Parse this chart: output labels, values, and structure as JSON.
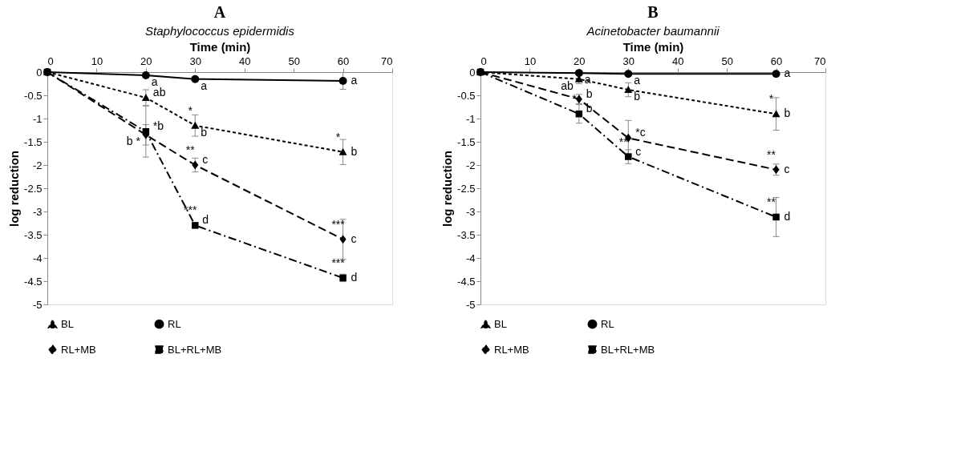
{
  "chart_data": [
    {
      "type": "line",
      "title": "A",
      "subtitle": "Staphylococcus epidermidis",
      "xlabel": "Time (min)",
      "ylabel": "log reduction",
      "x": [
        0,
        20,
        30,
        60
      ],
      "xlim": [
        0,
        70
      ],
      "xticks": [
        0,
        10,
        20,
        30,
        40,
        50,
        60,
        70
      ],
      "ylim": [
        -5,
        0
      ],
      "yticks": [
        -5,
        -4.5,
        -4,
        -3.5,
        -3,
        -2.5,
        -2,
        -1.5,
        -1,
        -0.5,
        0
      ],
      "legend": "bottom",
      "series": [
        {
          "name": "BL",
          "color": "#000000",
          "marker": "triangle",
          "line_style": "dotted",
          "values": [
            0,
            -0.55,
            -1.15,
            -1.72
          ],
          "errors": [
            null,
            0.17,
            0.23,
            0.27
          ]
        },
        {
          "name": "RL",
          "color": "#000000",
          "marker": "circle",
          "line_style": "solid",
          "values": [
            0,
            -0.07,
            -0.15,
            -0.19
          ],
          "errors": [
            null,
            null,
            null,
            0.18
          ]
        },
        {
          "name": "RL+MB",
          "color": "#000000",
          "marker": "diamond",
          "line_style": "dashed",
          "values": [
            0,
            -1.35,
            -2.0,
            -3.6
          ],
          "errors": [
            null,
            0.22,
            0.15,
            0.43
          ]
        },
        {
          "name": "BL+RL+MB",
          "color": "#000000",
          "marker": "square",
          "line_style": "dashdot",
          "values": [
            0,
            -1.28,
            -3.3,
            -4.43
          ],
          "errors": [
            null,
            0.55,
            null,
            0.08
          ]
        }
      ],
      "annotations": [
        {
          "text": "a",
          "x": 20,
          "y": -0.07
        },
        {
          "text": "ab",
          "x": 20,
          "y": -0.55
        },
        {
          "text": "*b",
          "x": 20,
          "y": -1.28
        },
        {
          "text": "b *",
          "x": 20,
          "y": -1.35
        },
        {
          "text": "a",
          "x": 30,
          "y": -0.15
        },
        {
          "text": "*",
          "x": 30,
          "y": -1.15
        },
        {
          "text": "b",
          "x": 30,
          "y": -1.15
        },
        {
          "text": "**",
          "x": 30,
          "y": -2.0
        },
        {
          "text": "c",
          "x": 30,
          "y": -2.0
        },
        {
          "text": "***",
          "x": 30,
          "y": -3.3
        },
        {
          "text": "d",
          "x": 30,
          "y": -3.3
        },
        {
          "text": "a",
          "x": 60,
          "y": -0.19
        },
        {
          "text": "*",
          "x": 60,
          "y": -1.72
        },
        {
          "text": "b",
          "x": 60,
          "y": -1.72
        },
        {
          "text": "***",
          "x": 60,
          "y": -3.6
        },
        {
          "text": "c",
          "x": 60,
          "y": -3.6
        },
        {
          "text": "***",
          "x": 60,
          "y": -4.43
        },
        {
          "text": "d",
          "x": 60,
          "y": -4.43
        }
      ]
    },
    {
      "type": "line",
      "title": "B",
      "subtitle": "Acinetobacter baumannii",
      "xlabel": "Time (min)",
      "ylabel": "log reduction",
      "x": [
        0,
        20,
        30,
        60
      ],
      "xlim": [
        0,
        70
      ],
      "xticks": [
        0,
        10,
        20,
        30,
        40,
        50,
        60,
        70
      ],
      "ylim": [
        -5,
        0
      ],
      "yticks": [
        -5,
        -4.5,
        -4,
        -3.5,
        -3,
        -2.5,
        -2,
        -1.5,
        -1,
        -0.5,
        0
      ],
      "legend": "bottom",
      "series": [
        {
          "name": "BL",
          "color": "#000000",
          "marker": "triangle",
          "line_style": "dotted",
          "values": [
            0,
            -0.15,
            -0.38,
            -0.9
          ],
          "errors": [
            null,
            0.1,
            0.15,
            0.35
          ]
        },
        {
          "name": "RL",
          "color": "#000000",
          "marker": "circle",
          "line_style": "solid",
          "values": [
            0,
            -0.02,
            -0.04,
            -0.04
          ],
          "errors": [
            null,
            null,
            null,
            null
          ]
        },
        {
          "name": "RL+MB",
          "color": "#000000",
          "marker": "diamond",
          "line_style": "dashed",
          "values": [
            0,
            -0.58,
            -1.42,
            -2.1
          ],
          "errors": [
            null,
            0.1,
            0.38,
            0.12
          ]
        },
        {
          "name": "BL+RL+MB",
          "color": "#000000",
          "marker": "square",
          "line_style": "dashdot",
          "values": [
            0,
            -0.9,
            -1.82,
            -3.12
          ],
          "errors": [
            null,
            0.2,
            0.15,
            0.42
          ]
        }
      ],
      "annotations": [
        {
          "text": "a",
          "x": 20,
          "y": -0.02
        },
        {
          "text": "ab",
          "x": 20,
          "y": -0.15
        },
        {
          "text": "b",
          "x": 20,
          "y": -0.58
        },
        {
          "text": "*",
          "x": 20,
          "y": -0.9
        },
        {
          "text": "b",
          "x": 20,
          "y": -0.9
        },
        {
          "text": "a",
          "x": 30,
          "y": -0.04
        },
        {
          "text": "b",
          "x": 30,
          "y": -0.38
        },
        {
          "text": "*c",
          "x": 30,
          "y": -1.42
        },
        {
          "text": "**",
          "x": 30,
          "y": -1.82
        },
        {
          "text": "c",
          "x": 30,
          "y": -1.82
        },
        {
          "text": "a",
          "x": 60,
          "y": -0.04
        },
        {
          "text": "*",
          "x": 60,
          "y": -0.9
        },
        {
          "text": "b",
          "x": 60,
          "y": -0.9
        },
        {
          "text": "**",
          "x": 60,
          "y": -2.1
        },
        {
          "text": "c",
          "x": 60,
          "y": -2.1
        },
        {
          "text": "**",
          "x": 60,
          "y": -3.12
        },
        {
          "text": "d",
          "x": 60,
          "y": -3.12
        }
      ]
    }
  ]
}
